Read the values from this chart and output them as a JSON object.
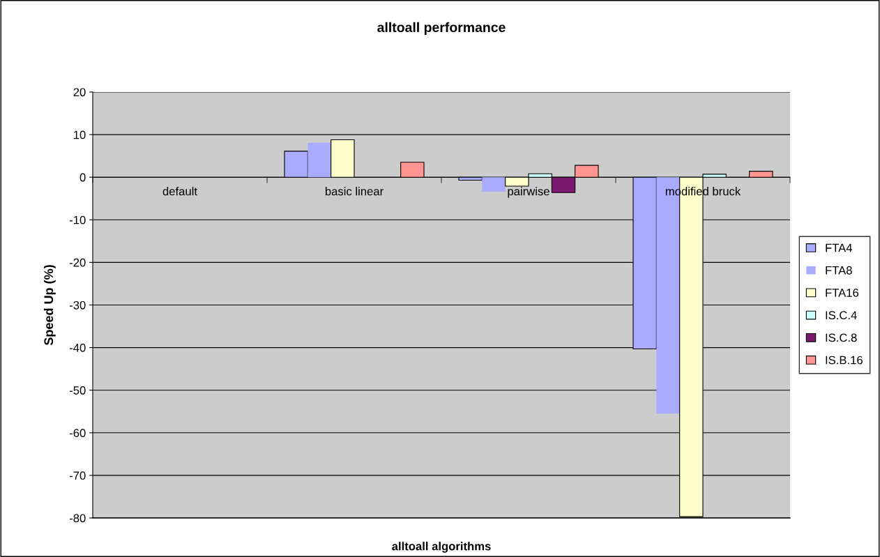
{
  "chart_data": {
    "type": "bar",
    "title": "alltoall performance",
    "xlabel": "alltoall algorithms",
    "ylabel": "Speed Up (%)",
    "categories": [
      "default",
      "basic linear",
      "pairwise",
      "modified bruck"
    ],
    "series": [
      {
        "name": "FTA4",
        "color": "#aaaaff",
        "values": [
          null,
          6.1,
          -0.7,
          -40.3
        ]
      },
      {
        "name": "FTA8",
        "color": "#aaaaff",
        "values": [
          null,
          8.1,
          -3.4,
          -55.5
        ]
      },
      {
        "name": "FTA16",
        "color": "#ffffcc",
        "values": [
          null,
          8.8,
          -2.1,
          -79.7
        ]
      },
      {
        "name": "IS.C.4",
        "color": "#ccffff",
        "values": [
          null,
          null,
          0.8,
          0.7
        ]
      },
      {
        "name": "IS.C.8",
        "color": "#7b1870",
        "values": [
          null,
          null,
          -3.6,
          null
        ]
      },
      {
        "name": "IS.B.16",
        "color": "#ff9490",
        "values": [
          null,
          3.5,
          2.8,
          1.4
        ]
      }
    ],
    "ylim": [
      -80,
      20
    ],
    "yticks": [
      -80,
      -70,
      -60,
      -50,
      -40,
      -30,
      -20,
      -10,
      0,
      10,
      20
    ],
    "grid": "y",
    "legend": "right"
  }
}
